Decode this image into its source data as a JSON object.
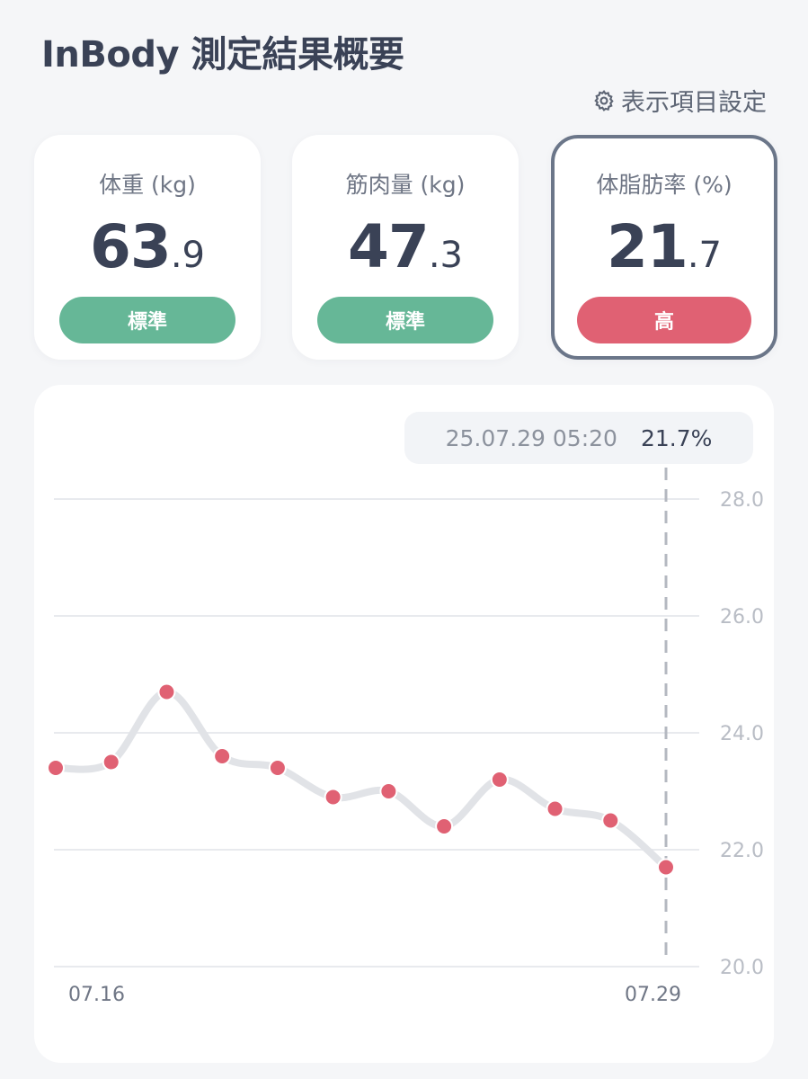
{
  "header": {
    "title": "InBody 測定結果概要",
    "settings_label": "表示項目設定",
    "settings_icon": "gear-icon"
  },
  "cards": [
    {
      "label": "体重 (kg)",
      "value_int": "63",
      "value_dec": ".9",
      "badge": "標準",
      "badge_color": "#66b797"
    },
    {
      "label": "筋肉量 (kg)",
      "value_int": "47",
      "value_dec": ".3",
      "badge": "標準",
      "badge_color": "#66b797"
    },
    {
      "label": "体脂肪率 (%)",
      "value_int": "21",
      "value_dec": ".7",
      "badge": "高",
      "badge_color": "#e06173",
      "selected": true
    }
  ],
  "tooltip": {
    "timestamp": "25.07.29 05:20",
    "value": "21.7%"
  },
  "chart_data": {
    "type": "line",
    "title": "",
    "y_ticks": [
      "28.0",
      "26.0",
      "24.0",
      "22.0",
      "20.0"
    ],
    "ylim": [
      20,
      28
    ],
    "x_tick_labels": [
      "07.16",
      "07.29"
    ],
    "series": [
      {
        "values": [
          23.4,
          23.5,
          24.7,
          23.6,
          23.4,
          22.9,
          23.0,
          22.4,
          23.2,
          22.7,
          22.5,
          21.7
        ]
      }
    ],
    "highlighted_index": 11,
    "line_color": "#e1e3e7",
    "point_color": "#e06173",
    "grid": true
  }
}
